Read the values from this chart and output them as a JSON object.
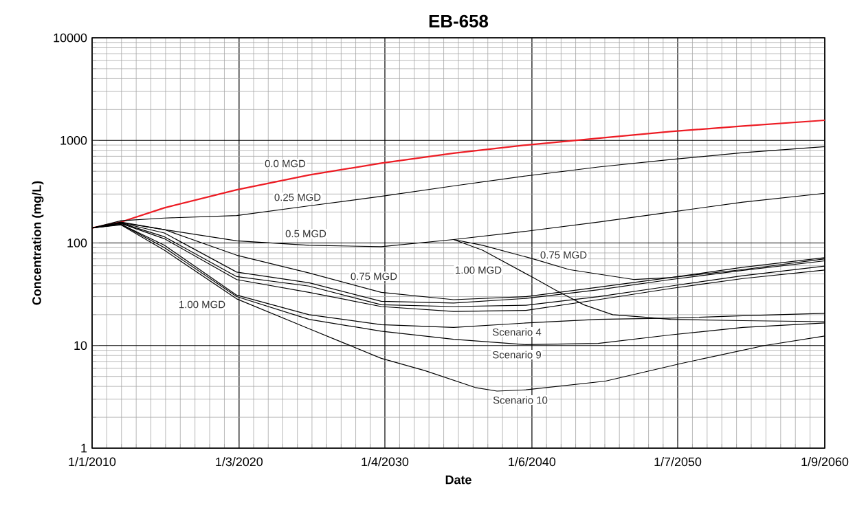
{
  "chart_data": {
    "type": "line",
    "title": "EB-658",
    "xlabel": "Date",
    "ylabel": "Concentration (mg/L)",
    "log": "y",
    "grid": true,
    "marker": "none",
    "line_style": "solid",
    "xlim": [
      "2010-01-01",
      "2060-09-01"
    ],
    "xticks": [
      {
        "value": "2010-01-01",
        "label": "1/1/2010"
      },
      {
        "value": "2020-03-01",
        "label": "1/3/2020"
      },
      {
        "value": "2030-04-01",
        "label": "1/4/2030"
      },
      {
        "value": "2040-06-01",
        "label": "1/6/2040"
      },
      {
        "value": "2050-07-01",
        "label": "1/7/2050"
      },
      {
        "value": "2060-09-01",
        "label": "1/9/2060"
      }
    ],
    "ylim": [
      1,
      10000
    ],
    "yticks": [
      1,
      10,
      100,
      1000,
      10000
    ],
    "x": [
      "2010-01-01",
      "2012-01-01",
      "2015-01-01",
      "2020-01-01",
      "2025-01-01",
      "2030-01-01",
      "2035-01-01",
      "2040-01-01",
      "2045-01-01",
      "2050-01-01",
      "2055-01-01",
      "2060-09-01"
    ],
    "series": [
      {
        "color": "#ed1c24",
        "values": [
          140,
          160,
          220,
          330,
          460,
          600,
          750,
          900,
          1050,
          1220,
          1380,
          1570
        ]
      },
      {
        "color": "#000000",
        "values": [
          140,
          165,
          175,
          185,
          230,
          285,
          360,
          450,
          550,
          650,
          760,
          870
        ]
      },
      {
        "color": "#000000",
        "values": [
          140,
          160,
          135,
          105,
          95,
          92,
          108,
          130,
          160,
          200,
          250,
          305
        ]
      },
      {
        "color": "#000000",
        "x": [
          "2035-01-01",
          "2037-01-01",
          "2040-07-01",
          "2043-01-01",
          "2047-07-01",
          "2050-01-01",
          "2055-01-01",
          "2060-09-01"
        ],
        "values": [
          108,
          95,
          70,
          55,
          44,
          46,
          55,
          70
        ]
      },
      {
        "color": "#000000",
        "x": [
          "2035-01-01",
          "2037-01-01",
          "2040-07-01",
          "2042-01-01",
          "2044-01-01",
          "2046-01-01",
          "2048-01-01",
          "2050-01-01",
          "2055-01-01",
          "2060-09-01"
        ],
        "values": [
          108,
          85,
          46,
          35,
          25,
          20,
          19,
          18,
          17.5,
          17.1
        ]
      },
      {
        "color": "#000000",
        "values": [
          140,
          158,
          135,
          76,
          51,
          33,
          28,
          30,
          37,
          46,
          58,
          72
        ]
      },
      {
        "color": "#000000",
        "values": [
          140,
          157,
          125,
          52,
          41,
          27,
          26,
          28.8,
          35,
          44,
          54,
          67
        ]
      },
      {
        "color": "#000000",
        "values": [
          140,
          156,
          115,
          47,
          38,
          25,
          24,
          24.7,
          30,
          38,
          48,
          59.5
        ]
      },
      {
        "color": "#000000",
        "values": [
          140,
          155,
          110,
          44,
          33,
          24,
          21.5,
          22,
          28,
          36,
          45,
          54.5
        ]
      },
      {
        "color": "#000000",
        "values": [
          140,
          152,
          95,
          31,
          20,
          16,
          15,
          16.6,
          18,
          18.5,
          19.5,
          20.6
        ]
      },
      {
        "color": "#000000",
        "values": [
          140,
          152,
          90,
          30,
          18,
          13.8,
          11.5,
          10.2,
          10.5,
          12.7,
          15,
          16.6
        ]
      },
      {
        "color": "#000000",
        "x": [
          "2010-01-01",
          "2012-01-01",
          "2015-01-01",
          "2020-01-01",
          "2025-01-01",
          "2030-01-01",
          "2033-01-01",
          "2036-07-01",
          "2038-01-01",
          "2040-01-01",
          "2045-07-01",
          "2050-10-01",
          "2056-07-01",
          "2060-09-01"
        ],
        "values": [
          140,
          150,
          85,
          28.5,
          14.6,
          7.5,
          5.7,
          3.9,
          3.6,
          3.7,
          4.5,
          6.7,
          10,
          12.4
        ]
      }
    ],
    "annotations": [
      "0.0 MGD",
      "0.25 MGD",
      "0.5 MGD",
      "0.75 MGD",
      "1.00 MGD",
      "0.75 MGD",
      "1.00 MGD",
      "Scenario 4",
      "Scenario 9",
      "Scenario 10"
    ]
  }
}
